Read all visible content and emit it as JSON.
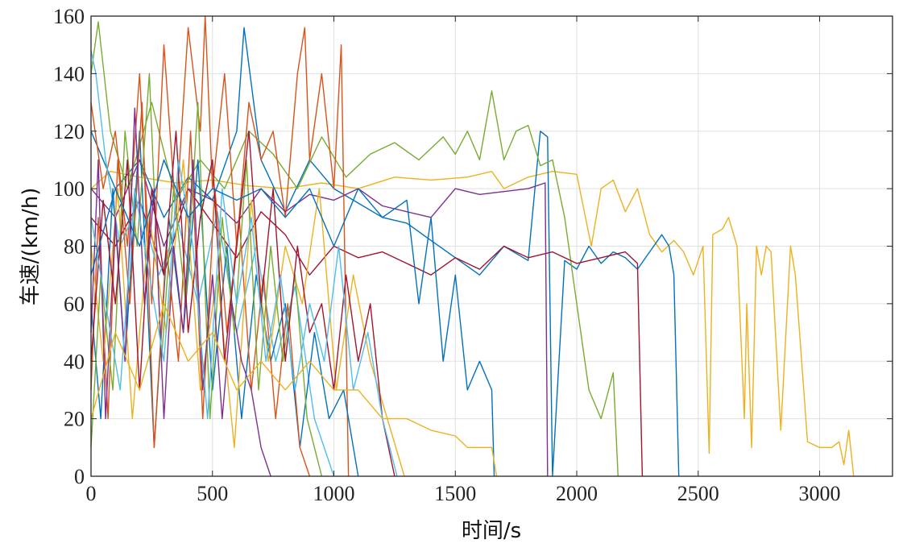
{
  "chart_data": {
    "type": "line",
    "title": "",
    "xlabel": "时间/s",
    "ylabel": "车速/(km/h)",
    "xlim": [
      0,
      3300
    ],
    "ylim": [
      0,
      160
    ],
    "xticks": [
      0,
      500,
      1000,
      1500,
      2000,
      2500,
      3000
    ],
    "yticks": [
      0,
      20,
      40,
      60,
      80,
      100,
      120,
      140,
      160
    ],
    "xtick_labels": [
      "0",
      "500",
      "1000",
      "1500",
      "2000",
      "2500",
      "3000"
    ],
    "ytick_labels": [
      "0",
      "20",
      "40",
      "60",
      "80",
      "100",
      "120",
      "140",
      "160"
    ],
    "grid": true,
    "legend": "none",
    "series": [
      {
        "color": "#EDB120",
        "x": [
          0,
          80,
          200,
          350,
          500,
          650,
          800,
          950,
          1100,
          1250,
          1400,
          1550,
          1650,
          1700,
          1800,
          1900,
          2000,
          2060,
          2100,
          2150,
          2200,
          2250,
          2300,
          2350,
          2400,
          2440,
          2480,
          2520,
          2545,
          2560,
          2600,
          2625,
          2660,
          2690,
          2700,
          2720,
          2740,
          2760,
          2780,
          2800,
          2840,
          2880,
          2900,
          2950,
          3000,
          3050,
          3080,
          3100,
          3120,
          3140
        ],
        "y": [
          100,
          106,
          104,
          102,
          103,
          101,
          100,
          102,
          100,
          104,
          103,
          104,
          106,
          100,
          104,
          106,
          105,
          80,
          100,
          103,
          92,
          100,
          84,
          78,
          82,
          78,
          70,
          80,
          8,
          84,
          86,
          90,
          80,
          20,
          60,
          10,
          80,
          70,
          80,
          78,
          16,
          80,
          70,
          12,
          10,
          10,
          12,
          4,
          16,
          0
        ]
      },
      {
        "color": "#0072BD",
        "x": [
          0,
          100,
          200,
          300,
          400,
          500,
          600,
          630,
          700,
          800,
          900,
          1000,
          1100,
          1200,
          1300,
          1400,
          1500,
          1600,
          1700,
          1800,
          1850,
          1880,
          1900,
          1950,
          2000,
          2050,
          2100,
          2150,
          2200,
          2250,
          2300,
          2350,
          2380,
          2400,
          2420
        ],
        "y": [
          120,
          100,
          110,
          90,
          104,
          96,
          120,
          156,
          110,
          92,
          110,
          100,
          95,
          90,
          88,
          82,
          76,
          70,
          80,
          75,
          120,
          118,
          0,
          75,
          72,
          80,
          74,
          78,
          76,
          72,
          78,
          84,
          80,
          70,
          0
        ]
      },
      {
        "color": "#77AC30",
        "x": [
          0,
          30,
          80,
          150,
          250,
          350,
          450,
          550,
          650,
          750,
          850,
          950,
          1050,
          1150,
          1250,
          1350,
          1450,
          1500,
          1550,
          1600,
          1650,
          1700,
          1750,
          1800,
          1850,
          1900,
          1950,
          2000,
          2050,
          2100,
          2150,
          2170
        ],
        "y": [
          140,
          158,
          120,
          100,
          130,
          96,
          110,
          100,
          120,
          112,
          100,
          118,
          104,
          112,
          116,
          110,
          118,
          112,
          120,
          110,
          134,
          110,
          120,
          122,
          108,
          110,
          90,
          60,
          30,
          20,
          36,
          0
        ]
      },
      {
        "color": "#A2142F",
        "x": [
          0,
          100,
          200,
          300,
          400,
          500,
          600,
          700,
          800,
          900,
          1000,
          1100,
          1200,
          1300,
          1400,
          1500,
          1600,
          1700,
          1800,
          1900,
          2000,
          2100,
          2200,
          2250,
          2270
        ],
        "y": [
          90,
          80,
          96,
          70,
          100,
          88,
          76,
          92,
          84,
          70,
          80,
          76,
          78,
          74,
          70,
          76,
          72,
          80,
          76,
          78,
          74,
          76,
          78,
          74,
          0
        ]
      },
      {
        "color": "#D95319",
        "x": [
          0,
          50,
          100,
          150,
          200,
          250,
          300,
          350,
          400,
          450,
          470,
          500,
          550,
          600,
          650,
          700,
          750,
          800,
          850,
          880,
          900,
          950,
          1000,
          1030,
          1060
        ],
        "y": [
          130,
          100,
          120,
          80,
          140,
          60,
          150,
          90,
          156,
          120,
          160,
          100,
          140,
          80,
          130,
          110,
          120,
          90,
          140,
          156,
          110,
          140,
          100,
          150,
          0
        ]
      },
      {
        "color": "#7E2F8E",
        "x": [
          0,
          100,
          200,
          300,
          400,
          500,
          600,
          700,
          800,
          900,
          1000,
          1100,
          1200,
          1300,
          1400,
          1500,
          1600,
          1700,
          1800,
          1870,
          1880
        ],
        "y": [
          100,
          90,
          110,
          80,
          100,
          96,
          88,
          100,
          92,
          98,
          96,
          100,
          94,
          92,
          90,
          100,
          98,
          99,
          100,
          102,
          0
        ]
      },
      {
        "color": "#4DBEEE",
        "x": [
          0,
          20,
          60,
          120,
          200,
          280,
          360,
          440,
          520,
          600,
          680,
          760,
          840,
          920,
          1000
        ],
        "y": [
          148,
          140,
          110,
          80,
          96,
          70,
          88,
          60,
          92,
          50,
          80,
          40,
          66,
          20,
          0
        ]
      },
      {
        "color": "#0072BD",
        "x": [
          0,
          40,
          90,
          140,
          200,
          260,
          320,
          380,
          440,
          500,
          560,
          620,
          680,
          740,
          800,
          860,
          920,
          980,
          1040,
          1100
        ],
        "y": [
          60,
          20,
          100,
          40,
          120,
          10,
          90,
          50,
          110,
          30,
          80,
          20,
          70,
          40,
          60,
          10,
          50,
          20,
          30,
          0
        ]
      },
      {
        "color": "#D95319",
        "x": [
          0,
          30,
          70,
          110,
          160,
          210,
          260,
          310,
          360,
          410,
          460,
          510,
          560,
          610,
          660,
          710,
          760,
          810,
          860,
          900
        ],
        "y": [
          30,
          90,
          20,
          110,
          60,
          130,
          10,
          80,
          40,
          120,
          20,
          100,
          50,
          90,
          30,
          70,
          20,
          60,
          10,
          0
        ]
      },
      {
        "color": "#EDB120",
        "x": [
          0,
          50,
          110,
          170,
          240,
          310,
          380,
          450,
          520,
          590,
          660,
          730,
          800,
          870,
          940,
          1010,
          1080,
          1150,
          1220,
          1290
        ],
        "y": [
          80,
          40,
          100,
          20,
          90,
          50,
          110,
          30,
          70,
          10,
          96,
          40,
          80,
          60,
          100,
          30,
          70,
          40,
          20,
          0
        ]
      },
      {
        "color": "#77AC30",
        "x": [
          0,
          40,
          90,
          140,
          190,
          240,
          290,
          340,
          390,
          440,
          490,
          540,
          590,
          640,
          690,
          740,
          790,
          840,
          890,
          950
        ],
        "y": [
          10,
          70,
          30,
          120,
          80,
          140,
          40,
          100,
          60,
          130,
          20,
          90,
          50,
          110,
          30,
          80,
          40,
          70,
          20,
          0
        ]
      },
      {
        "color": "#7E2F8E",
        "x": [
          0,
          30,
          60,
          100,
          140,
          180,
          220,
          260,
          300,
          340,
          380,
          420,
          460,
          500,
          540,
          580,
          620,
          660,
          700,
          740
        ],
        "y": [
          50,
          110,
          20,
          90,
          40,
          128,
          60,
          100,
          20,
          80,
          50,
          110,
          30,
          70,
          20,
          60,
          40,
          30,
          10,
          0
        ]
      },
      {
        "color": "#A2142F",
        "x": [
          0,
          50,
          100,
          150,
          200,
          250,
          300,
          350,
          400,
          450,
          500,
          550,
          600,
          650,
          700,
          750,
          800,
          850,
          900,
          950,
          1000,
          1050,
          1100,
          1150,
          1200,
          1250
        ],
        "y": [
          40,
          96,
          60,
          110,
          30,
          100,
          70,
          120,
          50,
          90,
          110,
          40,
          80,
          120,
          60,
          100,
          40,
          80,
          50,
          60,
          30,
          70,
          40,
          60,
          20,
          0
        ]
      },
      {
        "color": "#4DBEEE",
        "x": [
          0,
          60,
          120,
          180,
          240,
          300,
          360,
          420,
          480,
          540,
          600,
          660,
          720,
          780,
          840,
          900,
          960,
          1020,
          1080,
          1140,
          1200,
          1260
        ],
        "y": [
          90,
          60,
          30,
          100,
          70,
          40,
          110,
          80,
          20,
          100,
          60,
          90,
          40,
          70,
          30,
          60,
          40,
          80,
          30,
          50,
          20,
          0
        ]
      },
      {
        "color": "#0072BD",
        "x": [
          0,
          100,
          200,
          300,
          400,
          500,
          600,
          700,
          800,
          900,
          1000,
          1100,
          1200,
          1300,
          1350,
          1400,
          1450,
          1500,
          1550,
          1600,
          1650,
          1660
        ],
        "y": [
          70,
          100,
          80,
          110,
          90,
          100,
          96,
          100,
          90,
          100,
          80,
          100,
          90,
          96,
          60,
          90,
          40,
          70,
          30,
          40,
          30,
          0
        ]
      },
      {
        "color": "#EDB120",
        "x": [
          0,
          100,
          200,
          300,
          400,
          500,
          600,
          700,
          800,
          900,
          1000,
          1100,
          1200,
          1300,
          1400,
          1500,
          1550,
          1600,
          1650,
          1670
        ],
        "y": [
          20,
          50,
          30,
          60,
          40,
          50,
          30,
          40,
          30,
          40,
          30,
          30,
          20,
          20,
          16,
          14,
          10,
          10,
          10,
          0
        ]
      }
    ]
  }
}
